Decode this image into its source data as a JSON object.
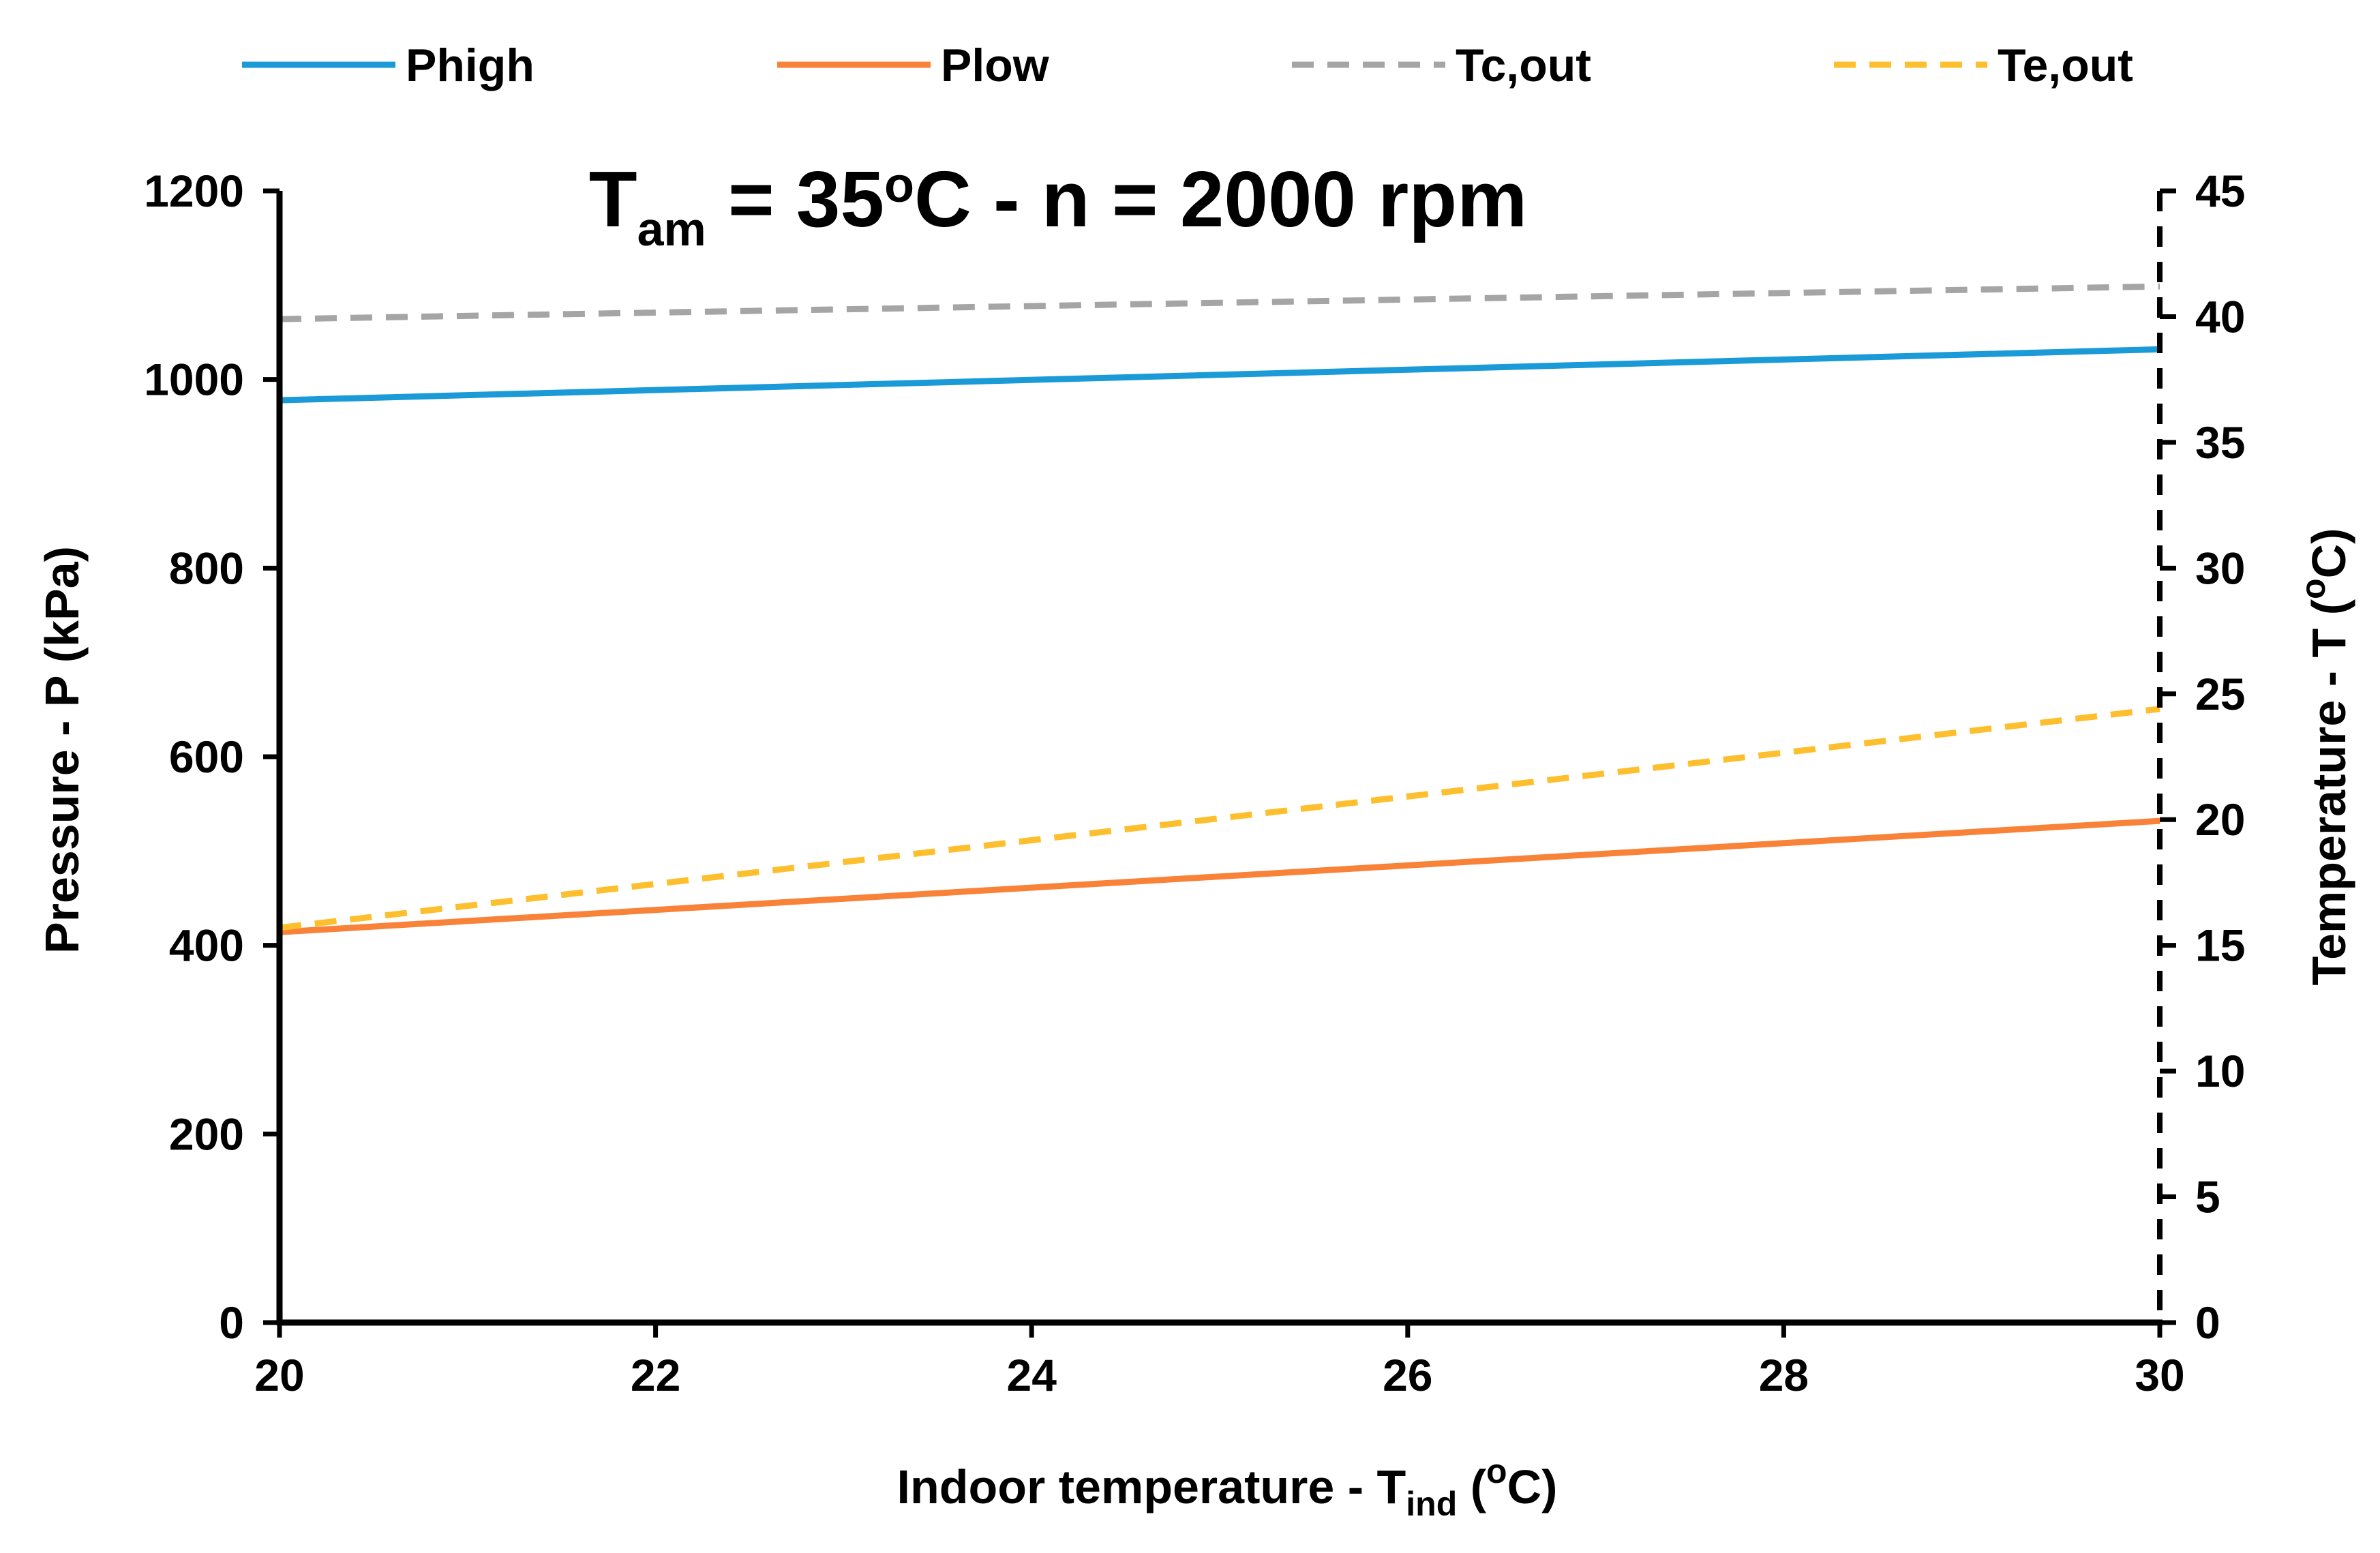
{
  "chart_data": {
    "type": "line",
    "title": {
      "main": "T",
      "sub": "am",
      "rest": " = 35",
      "deg": "o",
      "tail": "C - n = 2000 rpm"
    },
    "xlabel": {
      "main": "Indoor temperature - T",
      "sub": "ind",
      "open": " (",
      "deg": "o",
      "tail": "C)"
    },
    "ylabel": "Pressure - P (kPa)",
    "y2label": {
      "main": "Temperature - T (",
      "deg": "o",
      "tail": "C)"
    },
    "x": [
      20,
      30
    ],
    "xlim": [
      20,
      30
    ],
    "xticks": [
      "20",
      "22",
      "24",
      "26",
      "28",
      "30"
    ],
    "ylim": [
      0,
      1200
    ],
    "yticks": [
      "0",
      "200",
      "400",
      "600",
      "800",
      "1000",
      "1200"
    ],
    "y2lim": [
      0,
      45
    ],
    "y2ticks": [
      "0",
      "5",
      "10",
      "15",
      "20",
      "25",
      "30",
      "35",
      "40",
      "45"
    ],
    "grid": false,
    "legend_position": "top",
    "series": [
      {
        "name": "Phigh",
        "axis": "left",
        "values": [
          978,
          1032
        ],
        "color": "#1a9ad6",
        "dashed": false
      },
      {
        "name": "Plow",
        "axis": "left",
        "values": [
          414,
          532
        ],
        "color": "#f98239",
        "dashed": false
      },
      {
        "name": "Tc,out",
        "axis": "right",
        "values": [
          39.9,
          41.2
        ],
        "color": "#a5a5a5",
        "dashed": true
      },
      {
        "name": "Te,out",
        "axis": "right",
        "values": [
          15.7,
          24.4
        ],
        "color": "#fdbf2d",
        "dashed": true
      }
    ]
  }
}
